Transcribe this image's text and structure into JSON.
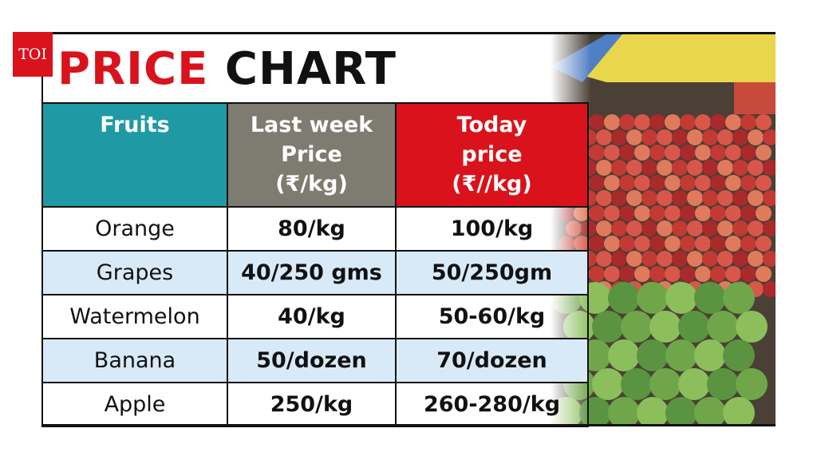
{
  "header": {
    "logo": "TOI",
    "title_part1": "PRICE",
    "title_part2": "CHART"
  },
  "table": {
    "columns": [
      "Fruits",
      "Last week\nPrice\n(₹/kg)",
      "Today\nprice\n(₹//kg)"
    ],
    "rows": [
      [
        "Orange",
        "80/kg",
        "100/kg"
      ],
      [
        "Grapes",
        "40/250 gms",
        "50/250gm"
      ],
      [
        "Watermelon",
        "40/kg",
        "50-60/kg"
      ],
      [
        "Banana",
        "50/dozen",
        "70/dozen"
      ],
      [
        "Apple",
        "250/kg",
        "260-280/kg"
      ]
    ]
  }
}
